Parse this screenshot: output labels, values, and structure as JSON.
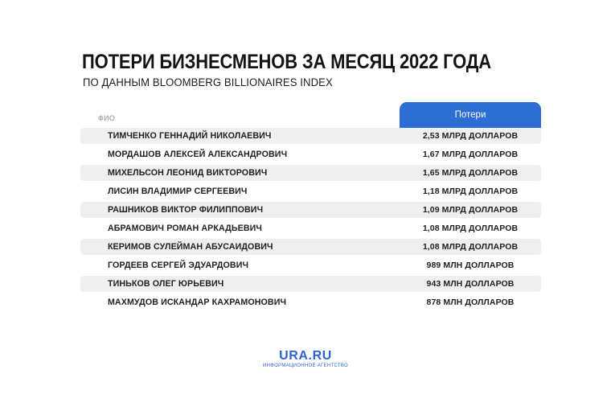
{
  "header": {
    "title": "ПОТЕРИ БИЗНЕСМЕНОВ ЗА МЕСЯЦ 2022 ГОДА",
    "subtitle": "ПО ДАННЫМ BLOOMBERG BILLIONAIRES INDEX"
  },
  "chart_data": {
    "type": "table",
    "title": "ПОТЕРИ БИЗНЕСМЕНОВ ЗА МЕСЯЦ 2022 ГОДА",
    "subtitle": "ПО ДАННЫМ BLOOMBERG BILLIONAIRES INDEX",
    "columns": [
      "ФИО",
      "Потери"
    ],
    "rows": [
      {
        "name": "ТИМЧЕНКО ГЕННАДИЙ НИКОЛАЕВИЧ",
        "loss": "2,53 МЛРД ДОЛЛАРОВ",
        "value_usd_bln": 2.53
      },
      {
        "name": "МОРДАШОВ АЛЕКСЕЙ АЛЕКСАНДРОВИЧ",
        "loss": "1,67 МЛРД ДОЛЛАРОВ",
        "value_usd_bln": 1.67
      },
      {
        "name": "МИХЕЛЬСОН ЛЕОНИД ВИКТОРОВИЧ",
        "loss": "1,65 МЛРД ДОЛЛАРОВ",
        "value_usd_bln": 1.65
      },
      {
        "name": "ЛИСИН ВЛАДИМИР СЕРГЕЕВИЧ",
        "loss": "1,18 МЛРД ДОЛЛАРОВ",
        "value_usd_bln": 1.18
      },
      {
        "name": "РАШНИКОВ ВИКТОР ФИЛИППОВИЧ",
        "loss": "1,09 МЛРД ДОЛЛАРОВ",
        "value_usd_bln": 1.09
      },
      {
        "name": "АБРАМОВИЧ РОМАН АРКАДЬЕВИЧ",
        "loss": "1,08 МЛРД ДОЛЛАРОВ",
        "value_usd_bln": 1.08
      },
      {
        "name": "КЕРИМОВ СУЛЕЙМАН АБУСАИДОВИЧ",
        "loss": "1,08 МЛРД ДОЛЛАРОВ",
        "value_usd_bln": 1.08
      },
      {
        "name": "ГОРДЕЕВ СЕРГЕЙ ЭДУАРДОВИЧ",
        "loss": "989 МЛН ДОЛЛАРОВ",
        "value_usd_bln": 0.989
      },
      {
        "name": "ТИНЬКОВ ОЛЕГ ЮРЬЕВИЧ",
        "loss": "943 МЛН ДОЛЛАРОВ",
        "value_usd_bln": 0.943
      },
      {
        "name": "МАХМУДОВ ИСКАНДАР КАХРАМОНОВИЧ",
        "loss": "878 МЛН ДОЛЛАРОВ",
        "value_usd_bln": 0.878
      }
    ]
  },
  "table_header": {
    "name_column": "ФИО",
    "loss_column": "Потери"
  },
  "footer": {
    "logo": "URA.RU",
    "tagline": "ИНФОРМАЦИОННОЕ АГЕНТСТВО"
  },
  "colors": {
    "accent_blue": "#2d6ed5",
    "row_gray": "#efefef",
    "logo_blue": "#2c63d6",
    "text_dark": "#1f1f1f"
  }
}
